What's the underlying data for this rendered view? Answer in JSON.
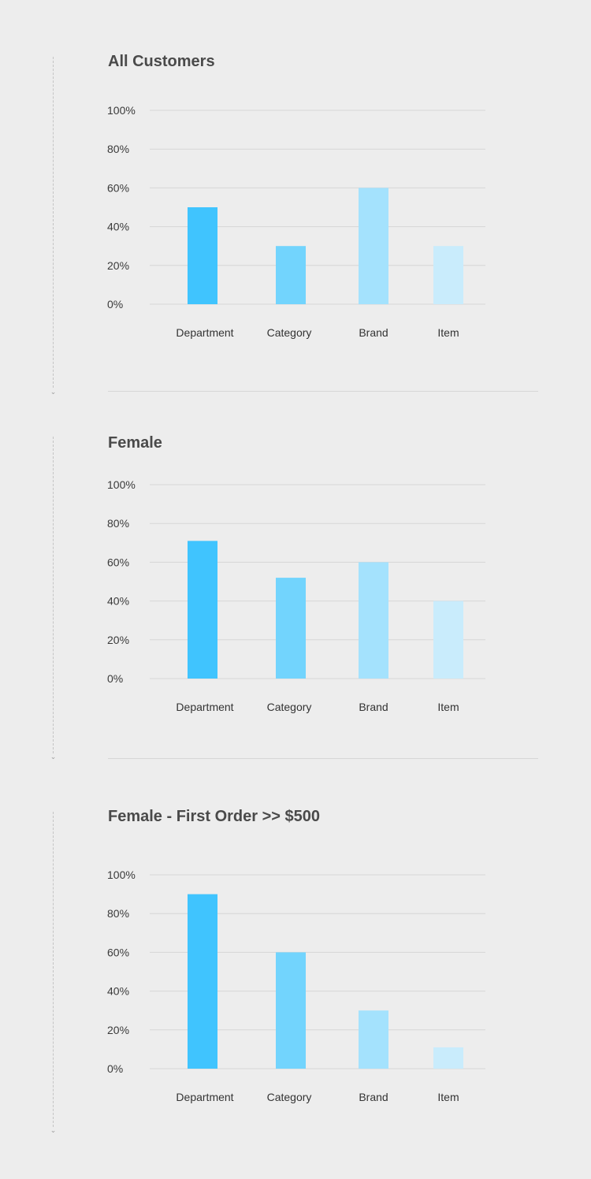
{
  "palette": {
    "background": "#ededed",
    "gridline": "#d6d6d6",
    "bars": [
      "#40c4fe",
      "#72d4fd",
      "#a4e2fd",
      "#c9ecfc"
    ]
  },
  "flow_arrow_icon": "chevron-down-icon",
  "chart_data": [
    {
      "type": "bar",
      "title": "All Customers",
      "categories": [
        "Department",
        "Category",
        "Brand",
        "Item"
      ],
      "values": [
        50,
        30,
        60,
        30
      ],
      "ylim": [
        0,
        100
      ],
      "yticks": [
        "0%",
        "20%",
        "40%",
        "60%",
        "80%",
        "100%"
      ],
      "grid": true
    },
    {
      "type": "bar",
      "title": "Female",
      "categories": [
        "Department",
        "Category",
        "Brand",
        "Item"
      ],
      "values": [
        71,
        52,
        60,
        40
      ],
      "ylim": [
        0,
        100
      ],
      "yticks": [
        "0%",
        "20%",
        "40%",
        "60%",
        "80%",
        "100%"
      ],
      "grid": true
    },
    {
      "type": "bar",
      "title": "Female - First Order >> $500",
      "categories": [
        "Department",
        "Category",
        "Brand",
        "Item"
      ],
      "values": [
        90,
        60,
        30,
        11
      ],
      "ylim": [
        0,
        100
      ],
      "yticks": [
        "0%",
        "20%",
        "40%",
        "60%",
        "80%",
        "100%"
      ],
      "grid": true
    }
  ]
}
